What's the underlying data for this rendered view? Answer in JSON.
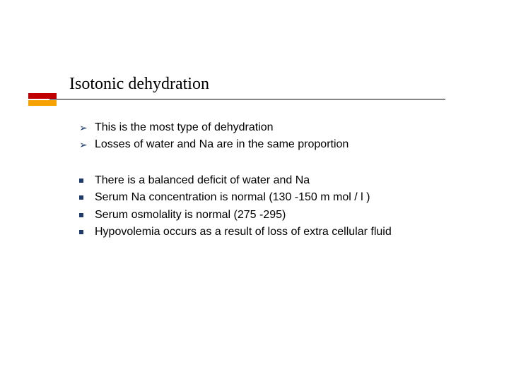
{
  "colors": {
    "accent_red": "#c00000",
    "accent_orange": "#f6a200",
    "bullet_navy": "#1f3a6d",
    "text": "#000000",
    "background": "#ffffff"
  },
  "title": "Isotonic dehydration",
  "typography": {
    "title_family": "Times New Roman",
    "title_size_pt": 24,
    "body_family": "Verdana",
    "body_size_pt": 16
  },
  "group1": {
    "bullet_glyph": "➢",
    "items": {
      "a": " This is the most type  of dehydration",
      "b": "  Losses of water and Na are in the same proportion"
    }
  },
  "group2": {
    "bullet_shape": "square",
    "items": {
      "a": "There   is   a  balanced deficit of water and Na",
      "b": "Serum Na concentration  is normal  (130 -150 m mol / l )",
      "c": "Serum   osmolality  is normal  (275 -295)",
      "d": "Hypovolemia   occurs as a result of  loss of extra cellular  fluid"
    }
  }
}
